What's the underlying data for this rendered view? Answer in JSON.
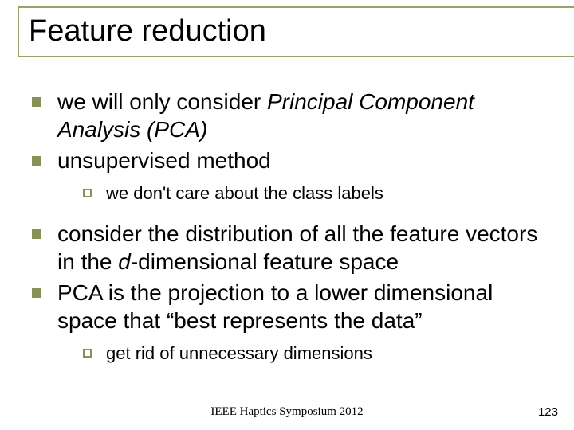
{
  "title": "Feature reduction",
  "bullets": {
    "b1_pre": "we will only consider ",
    "b1_em": "Principal Component Analysis (PCA)",
    "b2": "unsupervised method",
    "b2_sub": "we don't care about the class labels",
    "b3_pre": "consider the distribution of all the feature vectors in the ",
    "b3_em": "d",
    "b3_post": "-dimensional feature space",
    "b4": "PCA is the projection to a lower dimensional space that “best represents the data”",
    "b4_sub": "get rid of unnecessary dimensions"
  },
  "footer": "IEEE Haptics Symposium 2012",
  "page": "123"
}
